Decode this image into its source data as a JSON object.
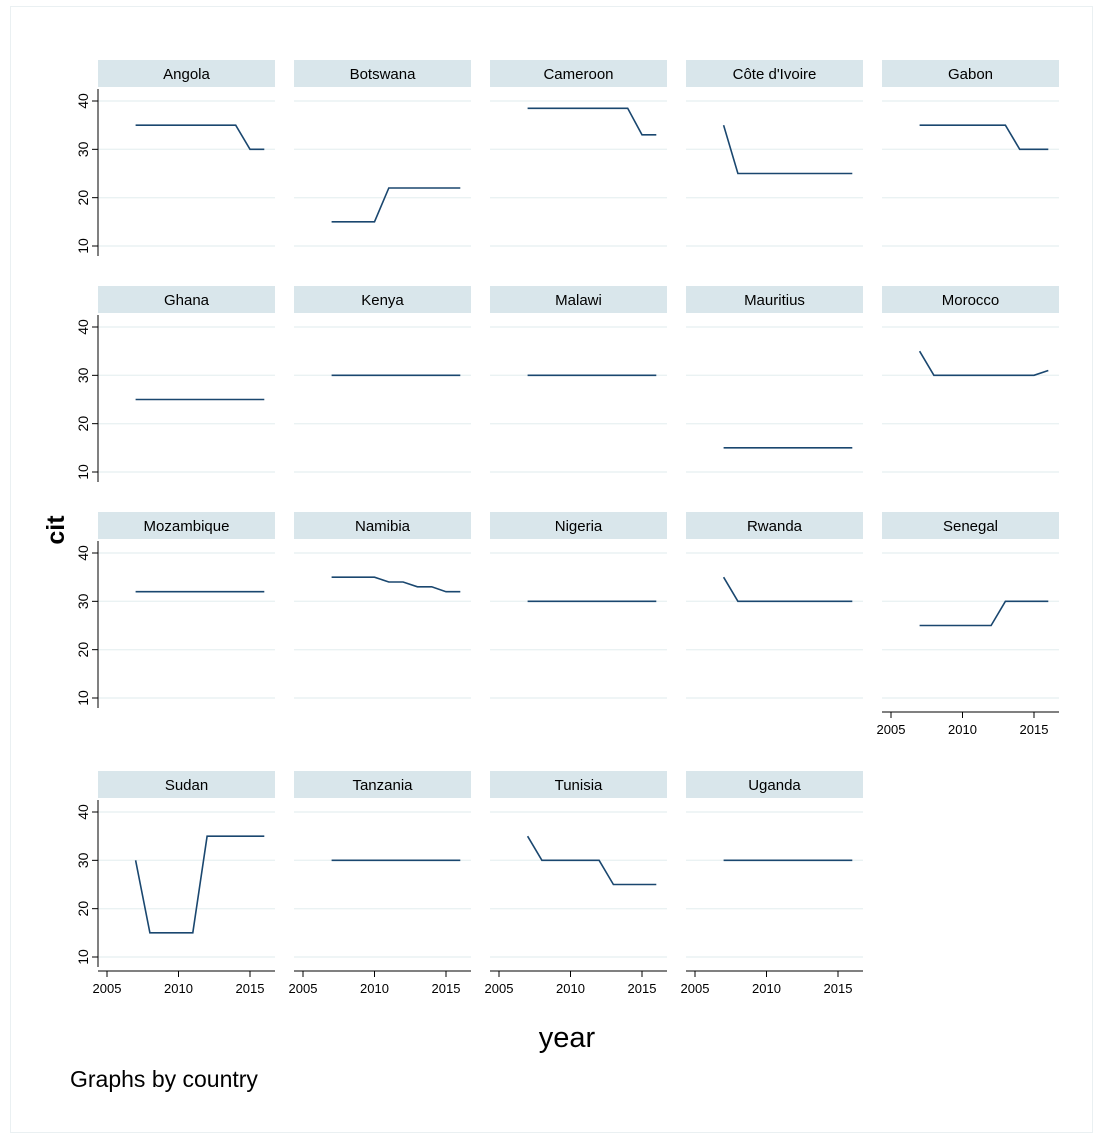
{
  "chart_data": {
    "type": "line",
    "layout": "small-multiples",
    "ylabel": "cit",
    "xlabel": "year",
    "note": "Graphs by country",
    "ylim": [
      10,
      40
    ],
    "xlim": [
      2005,
      2016
    ],
    "yticks": [
      10,
      20,
      30,
      40
    ],
    "xticks": [
      2005,
      2010,
      2015
    ],
    "grid": true,
    "colors": {
      "line": "#1a476f",
      "strip": "#d9e6eb",
      "grid": "#eaf2f3",
      "axis": "#000000"
    },
    "x": [
      2007,
      2008,
      2009,
      2010,
      2011,
      2012,
      2013,
      2014,
      2015,
      2016
    ],
    "panels": [
      {
        "name": "Angola",
        "values": [
          35,
          35,
          35,
          35,
          35,
          35,
          35,
          35,
          30,
          30
        ]
      },
      {
        "name": "Botswana",
        "values": [
          15,
          15,
          15,
          15,
          22,
          22,
          22,
          22,
          22,
          22
        ]
      },
      {
        "name": "Cameroon",
        "values": [
          38.5,
          38.5,
          38.5,
          38.5,
          38.5,
          38.5,
          38.5,
          38.5,
          33,
          33
        ]
      },
      {
        "name": "Côte d'Ivoire",
        "values": [
          35,
          25,
          25,
          25,
          25,
          25,
          25,
          25,
          25,
          25
        ]
      },
      {
        "name": "Gabon",
        "values": [
          35,
          35,
          35,
          35,
          35,
          35,
          35,
          30,
          30,
          30
        ]
      },
      {
        "name": "Ghana",
        "values": [
          25,
          25,
          25,
          25,
          25,
          25,
          25,
          25,
          25,
          25
        ]
      },
      {
        "name": "Kenya",
        "values": [
          30,
          30,
          30,
          30,
          30,
          30,
          30,
          30,
          30,
          30
        ]
      },
      {
        "name": "Malawi",
        "values": [
          30,
          30,
          30,
          30,
          30,
          30,
          30,
          30,
          30,
          30
        ]
      },
      {
        "name": "Mauritius",
        "values": [
          15,
          15,
          15,
          15,
          15,
          15,
          15,
          15,
          15,
          15
        ]
      },
      {
        "name": "Morocco",
        "values": [
          35,
          30,
          30,
          30,
          30,
          30,
          30,
          30,
          30,
          31
        ]
      },
      {
        "name": "Mozambique",
        "values": [
          32,
          32,
          32,
          32,
          32,
          32,
          32,
          32,
          32,
          32
        ]
      },
      {
        "name": "Namibia",
        "values": [
          35,
          35,
          35,
          35,
          34,
          34,
          33,
          33,
          32,
          32
        ]
      },
      {
        "name": "Nigeria",
        "values": [
          30,
          30,
          30,
          30,
          30,
          30,
          30,
          30,
          30,
          30
        ]
      },
      {
        "name": "Rwanda",
        "values": [
          35,
          30,
          30,
          30,
          30,
          30,
          30,
          30,
          30,
          30
        ]
      },
      {
        "name": "Senegal",
        "values": [
          25,
          25,
          25,
          25,
          25,
          25,
          30,
          30,
          30,
          30
        ]
      },
      {
        "name": "Sudan",
        "values": [
          30,
          15,
          15,
          15,
          15,
          35,
          35,
          35,
          35,
          35
        ]
      },
      {
        "name": "Tanzania",
        "values": [
          30,
          30,
          30,
          30,
          30,
          30,
          30,
          30,
          30,
          30
        ]
      },
      {
        "name": "Tunisia",
        "values": [
          35,
          30,
          30,
          30,
          30,
          30,
          25,
          25,
          25,
          25
        ]
      },
      {
        "name": "Uganda",
        "values": [
          30,
          30,
          30,
          30,
          30,
          30,
          30,
          30,
          30,
          30
        ]
      }
    ]
  }
}
